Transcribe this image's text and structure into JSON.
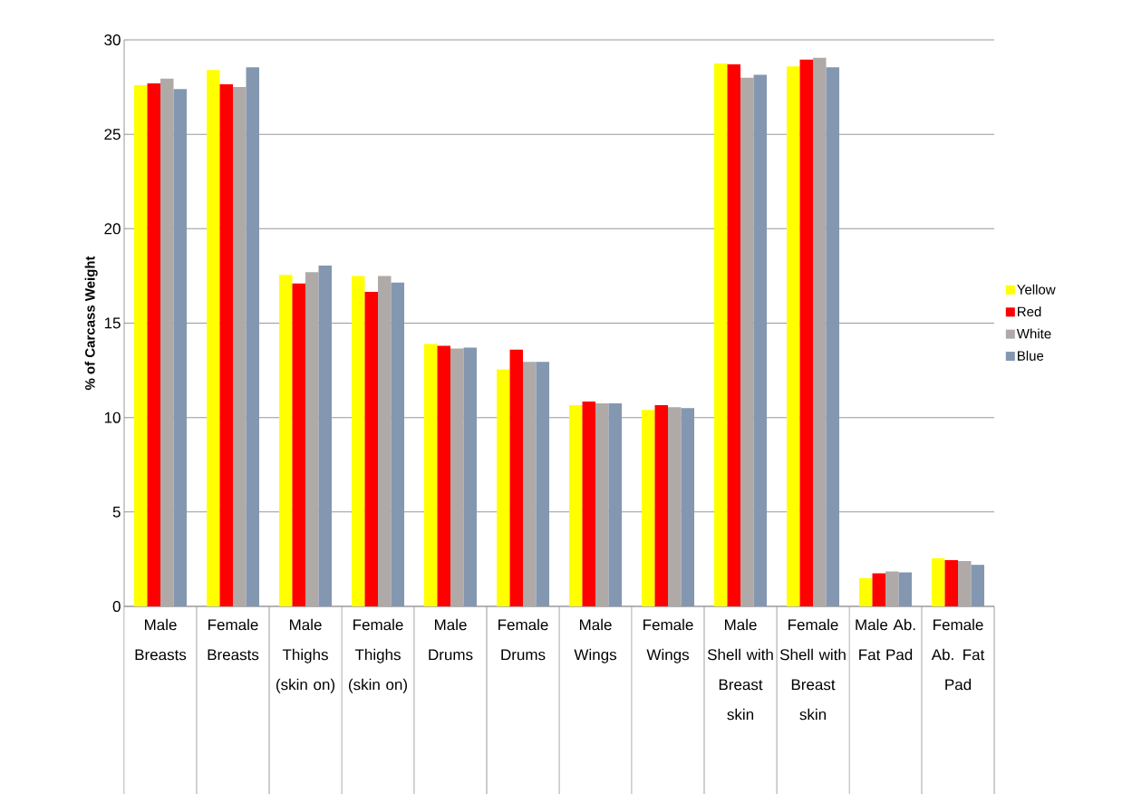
{
  "chart_data": {
    "type": "bar",
    "ylabel": "% of Carcass Weight",
    "categories": [
      "Male Breasts",
      "Female Breasts",
      "Male Thighs (skin on)",
      "Female Thighs (skin on)",
      "Male Drums",
      "Female Drums",
      "Male Wings",
      "Female Wings",
      "Male Shell with Breast skin",
      "Female Shell with Breast skin",
      "Male Ab. Fat Pad",
      "Female Ab. Fat Pad"
    ],
    "series": [
      {
        "name": "Yellow",
        "color": "#ffff00",
        "values": [
          27.6,
          28.4,
          17.55,
          17.5,
          13.9,
          12.55,
          10.65,
          10.4,
          28.75,
          28.6,
          1.5,
          2.55
        ]
      },
      {
        "name": "Red",
        "color": "#ff0000",
        "values": [
          27.7,
          27.65,
          17.1,
          16.65,
          13.8,
          13.6,
          10.85,
          10.65,
          28.7,
          28.95,
          1.75,
          2.45
        ]
      },
      {
        "name": "White",
        "color": "#afaaa8",
        "values": [
          27.95,
          27.5,
          17.7,
          17.5,
          13.65,
          12.95,
          10.75,
          10.55,
          28.0,
          29.05,
          1.85,
          2.4
        ]
      },
      {
        "name": "Blue",
        "color": "#8497b0",
        "values": [
          27.4,
          28.55,
          18.05,
          17.15,
          13.7,
          12.95,
          10.75,
          10.5,
          28.15,
          28.55,
          1.8,
          2.2
        ]
      }
    ],
    "ylim": [
      0,
      30
    ],
    "yticks": [
      0,
      5,
      10,
      15,
      20,
      25,
      30
    ],
    "grid": "y",
    "legend": "right"
  }
}
